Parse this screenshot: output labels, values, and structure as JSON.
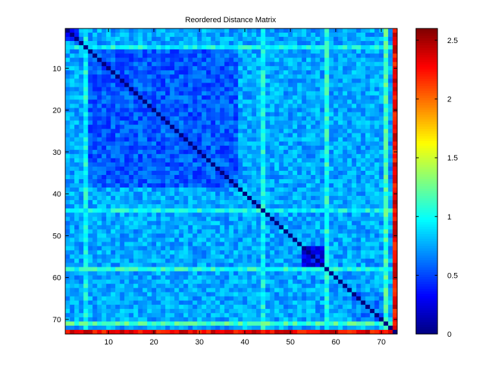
{
  "chart_data": {
    "type": "heatmap",
    "title": "Reordered Distance Matrix",
    "n": 73,
    "colormap": "jet",
    "clim": [
      0,
      2.6
    ],
    "x_ticks": [
      10,
      20,
      30,
      40,
      50,
      60,
      70
    ],
    "y_ticks": [
      10,
      20,
      30,
      40,
      50,
      60,
      70
    ],
    "colorbar_ticks": [
      0,
      0.5,
      1,
      1.5,
      2,
      2.5
    ],
    "structure": {
      "diagonal_value": 0,
      "tight_blocks": [
        {
          "from": 1,
          "to": 3,
          "value": 0.45
        },
        {
          "from": 6,
          "to": 38,
          "value": 0.55
        },
        {
          "from": 53,
          "to": 57,
          "value": 0.3
        },
        {
          "from": 64,
          "to": 70,
          "value": 0.65
        }
      ],
      "background_value": 0.75,
      "outlier_stripes": [
        {
          "index": 5,
          "value": 1.0
        },
        {
          "index": 44,
          "value": 1.0
        },
        {
          "index": 58,
          "value": 1.05
        },
        {
          "index": 71,
          "value": 1.15
        }
      ],
      "far_outlier": {
        "index": 73,
        "value": 2.3
      }
    }
  }
}
